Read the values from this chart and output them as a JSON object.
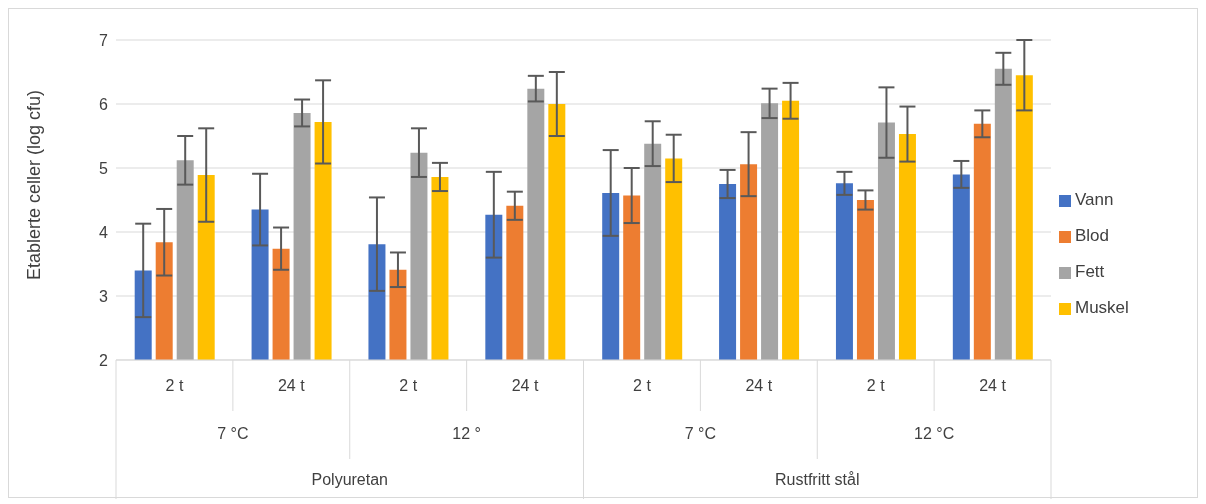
{
  "chart_data": {
    "type": "bar",
    "ylabel": "Etablerte celler (log cfu)",
    "categories": [
      "2 t",
      "24 t",
      "2 t",
      "24 t",
      "2 t",
      "24 t",
      "2 t",
      "24 t"
    ],
    "series": [
      {
        "name": "Vann",
        "color": "#4472c4",
        "values": [
          3.4,
          4.35,
          3.81,
          4.27,
          4.61,
          4.75,
          4.76,
          4.9
        ],
        "errors": [
          0.73,
          0.56,
          0.73,
          0.67,
          0.67,
          0.22,
          0.18,
          0.21
        ]
      },
      {
        "name": "Blod",
        "color": "#ed7d31",
        "values": [
          3.84,
          3.74,
          3.41,
          4.41,
          4.57,
          5.06,
          4.5,
          5.69
        ],
        "errors": [
          0.52,
          0.33,
          0.27,
          0.22,
          0.43,
          0.5,
          0.15,
          0.21
        ]
      },
      {
        "name": "Fett",
        "color": "#a5a5a5",
        "values": [
          5.12,
          5.86,
          5.24,
          6.24,
          5.38,
          6.01,
          5.71,
          6.55
        ],
        "errors": [
          0.38,
          0.21,
          0.38,
          0.2,
          0.35,
          0.23,
          0.55,
          0.25
        ]
      },
      {
        "name": "Muskel",
        "color": "#ffc000",
        "values": [
          4.89,
          5.72,
          4.86,
          6.0,
          5.15,
          6.05,
          5.53,
          6.45
        ],
        "errors": [
          0.73,
          0.65,
          0.22,
          0.5,
          0.37,
          0.28,
          0.43,
          0.55
        ]
      }
    ],
    "annotations": [
      "7 °C",
      "12 °",
      "7 °C",
      "12 °C",
      "Polyuretan",
      "Rustfritt stål"
    ],
    "ylim": [
      2,
      7
    ],
    "yticks": [
      2,
      3,
      4,
      5,
      6,
      7
    ],
    "grid": "y",
    "legend": "right"
  }
}
